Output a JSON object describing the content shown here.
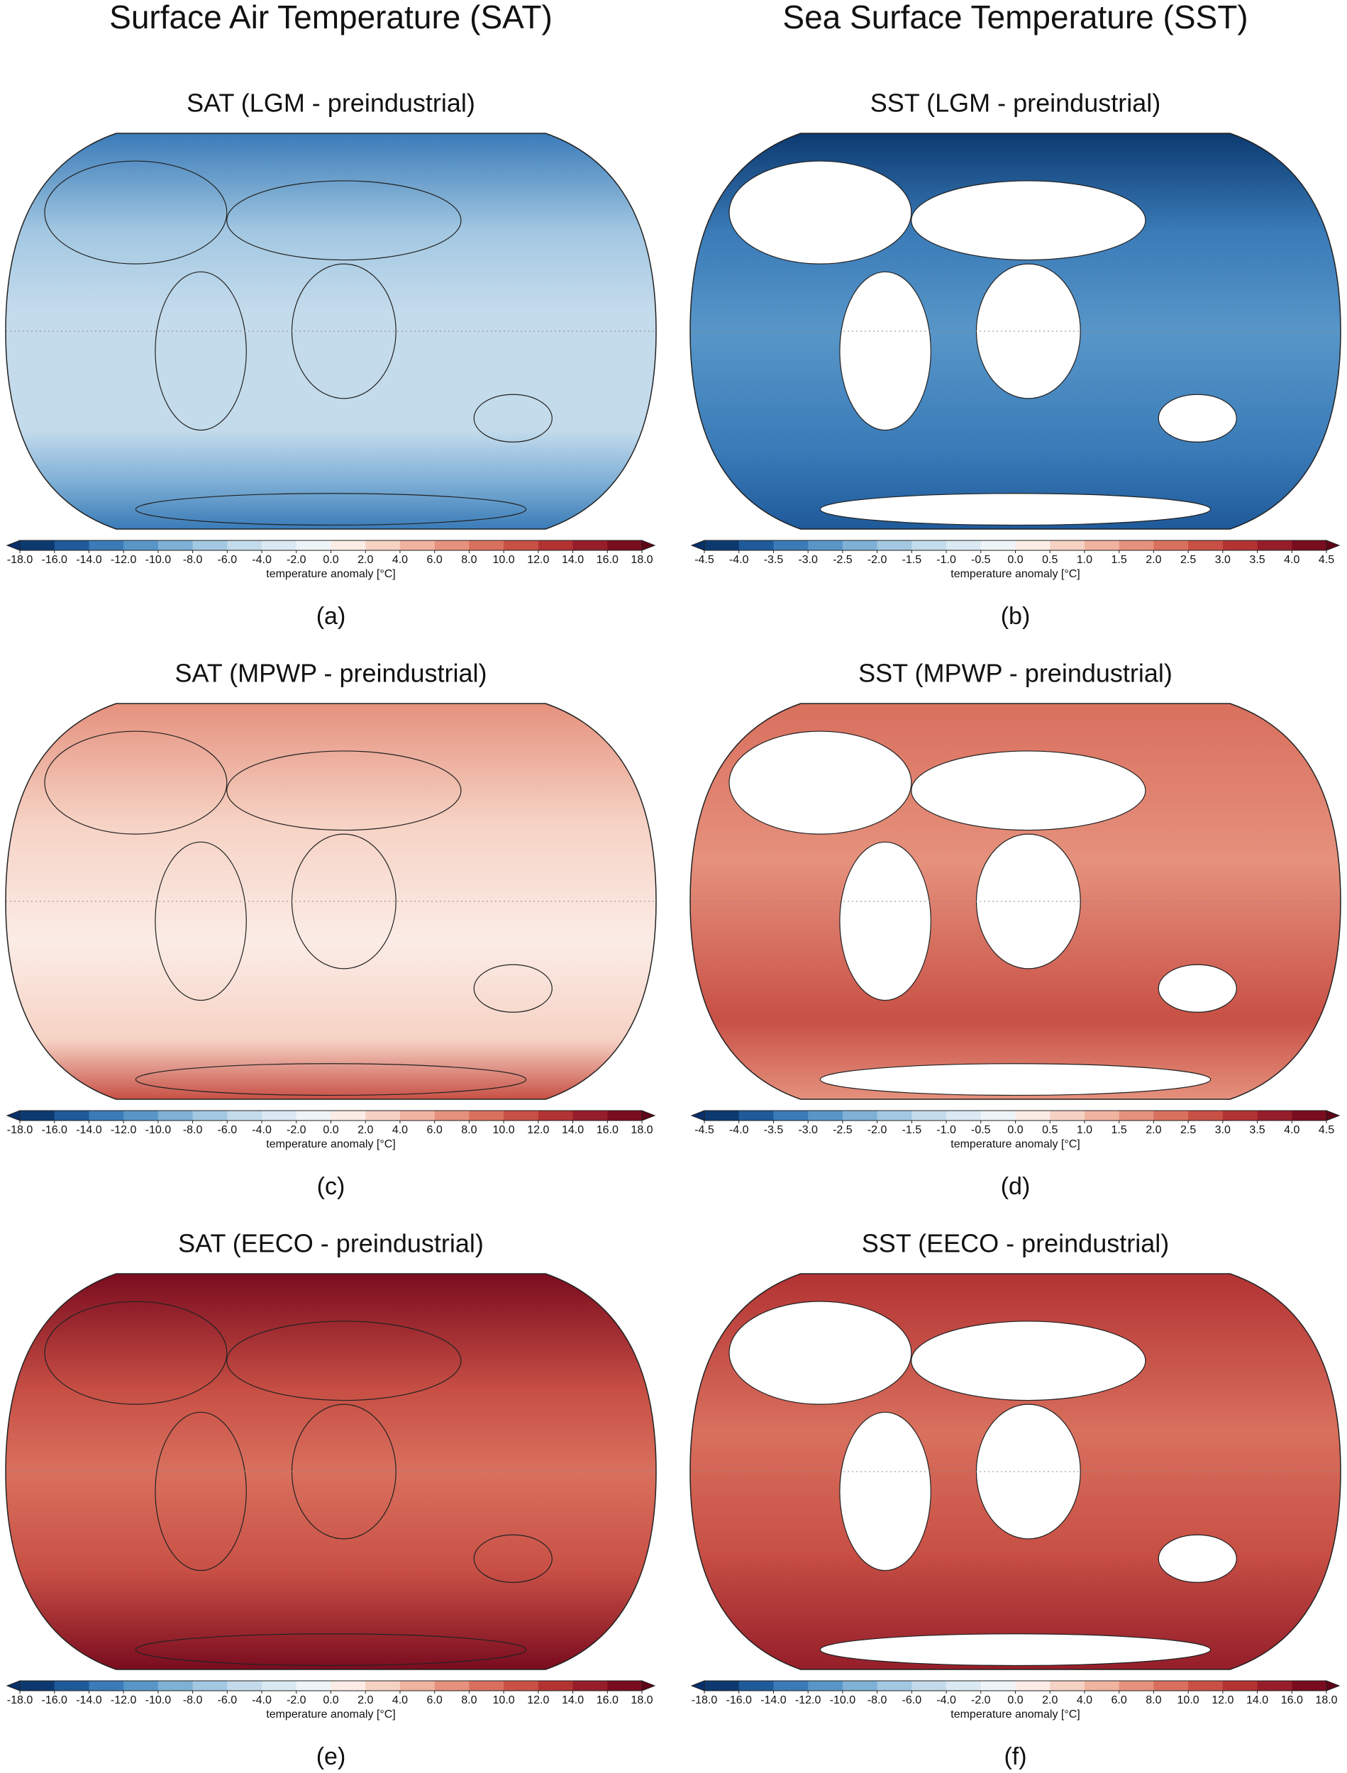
{
  "columns": [
    "Surface Air Temperature (SAT)",
    "Sea Surface Temperature (SST)"
  ],
  "panels": [
    {
      "title": "SAT (LGM - preindustrial)",
      "caption": "(a)",
      "colorbar": {
        "label": "temperature anomaly [°C]",
        "ticks": [
          {
            "value": -18,
            "label": "-18.0"
          },
          {
            "value": -16,
            "label": "-16.0"
          },
          {
            "value": -14,
            "label": "-14.0"
          },
          {
            "value": -12,
            "label": "-12.0"
          },
          {
            "value": -10,
            "label": "-10.0"
          },
          {
            "value": -8,
            "label": "-8.0"
          },
          {
            "value": -6,
            "label": "-6.0"
          },
          {
            "value": -4,
            "label": "-4.0"
          },
          {
            "value": -2,
            "label": "-2.0"
          },
          {
            "value": 0,
            "label": "0.0"
          },
          {
            "value": 2,
            "label": "2.0"
          },
          {
            "value": 4,
            "label": "4.0"
          },
          {
            "value": 6,
            "label": "6.0"
          },
          {
            "value": 8,
            "label": "8.0"
          },
          {
            "value": 10,
            "label": "10.0"
          },
          {
            "value": 12,
            "label": "12.0"
          },
          {
            "value": 14,
            "label": "14.0"
          },
          {
            "value": 16,
            "label": "16.0"
          },
          {
            "value": 18,
            "label": "18.0"
          }
        ],
        "colors": [
          "#08306b",
          "#0c3a70",
          "#1f5a9a",
          "#3a7bb8",
          "#5896c8",
          "#7fb0d6",
          "#a3c8e2",
          "#c4dbec",
          "#dbe9f3",
          "#eef4f8",
          "#fbece6",
          "#f6d2c4",
          "#f0b3a0",
          "#e5917d",
          "#d9705e",
          "#c85045",
          "#b33333",
          "#951e2a",
          "#7a0c1f",
          "#5f0417"
        ]
      }
    },
    {
      "title": "SST (LGM - preindustrial)",
      "caption": "(b)",
      "colorbar": {
        "label": "temperature anomaly [°C]",
        "ticks": [
          {
            "value": -4.5,
            "label": "-4.5"
          },
          {
            "value": -4,
            "label": "-4.0"
          },
          {
            "value": -3.5,
            "label": "-3.5"
          },
          {
            "value": -3,
            "label": "-3.0"
          },
          {
            "value": -2.5,
            "label": "-2.5"
          },
          {
            "value": -2,
            "label": "-2.0"
          },
          {
            "value": -1.5,
            "label": "-1.5"
          },
          {
            "value": -1,
            "label": "-1.0"
          },
          {
            "value": -0.5,
            "label": "-0.5"
          },
          {
            "value": 0,
            "label": "0.0"
          },
          {
            "value": 0.5,
            "label": "0.5"
          },
          {
            "value": 1,
            "label": "1.0"
          },
          {
            "value": 1.5,
            "label": "1.5"
          },
          {
            "value": 2,
            "label": "2.0"
          },
          {
            "value": 2.5,
            "label": "2.5"
          },
          {
            "value": 3,
            "label": "3.0"
          },
          {
            "value": 3.5,
            "label": "3.5"
          },
          {
            "value": 4,
            "label": "4.0"
          },
          {
            "value": 4.5,
            "label": "4.5"
          }
        ],
        "colors": [
          "#08306b",
          "#0c3a70",
          "#1f5a9a",
          "#3a7bb8",
          "#5896c8",
          "#7fb0d6",
          "#a3c8e2",
          "#c4dbec",
          "#dbe9f3",
          "#eef4f8",
          "#fbece6",
          "#f6d2c4",
          "#f0b3a0",
          "#e5917d",
          "#d9705e",
          "#c85045",
          "#b33333",
          "#951e2a",
          "#7a0c1f",
          "#5f0417"
        ]
      }
    },
    {
      "title": "SAT (MPWP - preindustrial)",
      "caption": "(c)",
      "colorbar": {
        "label": "temperature anomaly [°C]",
        "ticks": [
          {
            "value": -18,
            "label": "-18.0"
          },
          {
            "value": -16,
            "label": "-16.0"
          },
          {
            "value": -14,
            "label": "-14.0"
          },
          {
            "value": -12,
            "label": "-12.0"
          },
          {
            "value": -10,
            "label": "-10.0"
          },
          {
            "value": -8,
            "label": "-8.0"
          },
          {
            "value": -6,
            "label": "-6.0"
          },
          {
            "value": -4,
            "label": "-4.0"
          },
          {
            "value": -2,
            "label": "-2.0"
          },
          {
            "value": 0,
            "label": "0.0"
          },
          {
            "value": 2,
            "label": "2.0"
          },
          {
            "value": 4,
            "label": "4.0"
          },
          {
            "value": 6,
            "label": "6.0"
          },
          {
            "value": 8,
            "label": "8.0"
          },
          {
            "value": 10,
            "label": "10.0"
          },
          {
            "value": 12,
            "label": "12.0"
          },
          {
            "value": 14,
            "label": "14.0"
          },
          {
            "value": 16,
            "label": "16.0"
          },
          {
            "value": 18,
            "label": "18.0"
          }
        ],
        "colors": [
          "#08306b",
          "#0c3a70",
          "#1f5a9a",
          "#3a7bb8",
          "#5896c8",
          "#7fb0d6",
          "#a3c8e2",
          "#c4dbec",
          "#dbe9f3",
          "#eef4f8",
          "#fbece6",
          "#f6d2c4",
          "#f0b3a0",
          "#e5917d",
          "#d9705e",
          "#c85045",
          "#b33333",
          "#951e2a",
          "#7a0c1f",
          "#5f0417"
        ]
      }
    },
    {
      "title": "SST (MPWP - preindustrial)",
      "caption": "(d)",
      "colorbar": {
        "label": "temperature anomaly [°C]",
        "ticks": [
          {
            "value": -4.5,
            "label": "-4.5"
          },
          {
            "value": -4,
            "label": "-4.0"
          },
          {
            "value": -3.5,
            "label": "-3.5"
          },
          {
            "value": -3,
            "label": "-3.0"
          },
          {
            "value": -2.5,
            "label": "-2.5"
          },
          {
            "value": -2,
            "label": "-2.0"
          },
          {
            "value": -1.5,
            "label": "-1.5"
          },
          {
            "value": -1,
            "label": "-1.0"
          },
          {
            "value": -0.5,
            "label": "-0.5"
          },
          {
            "value": 0,
            "label": "0.0"
          },
          {
            "value": 0.5,
            "label": "0.5"
          },
          {
            "value": 1,
            "label": "1.0"
          },
          {
            "value": 1.5,
            "label": "1.5"
          },
          {
            "value": 2,
            "label": "2.0"
          },
          {
            "value": 2.5,
            "label": "2.5"
          },
          {
            "value": 3,
            "label": "3.0"
          },
          {
            "value": 3.5,
            "label": "3.5"
          },
          {
            "value": 4,
            "label": "4.0"
          },
          {
            "value": 4.5,
            "label": "4.5"
          }
        ],
        "colors": [
          "#08306b",
          "#0c3a70",
          "#1f5a9a",
          "#3a7bb8",
          "#5896c8",
          "#7fb0d6",
          "#a3c8e2",
          "#c4dbec",
          "#dbe9f3",
          "#eef4f8",
          "#fbece6",
          "#f6d2c4",
          "#f0b3a0",
          "#e5917d",
          "#d9705e",
          "#c85045",
          "#b33333",
          "#951e2a",
          "#7a0c1f",
          "#5f0417"
        ]
      }
    },
    {
      "title": "SAT (EECO - preindustrial)",
      "caption": "(e)",
      "colorbar": {
        "label": "temperature anomaly [°C]",
        "ticks": [
          {
            "value": -18,
            "label": "-18.0"
          },
          {
            "value": -16,
            "label": "-16.0"
          },
          {
            "value": -14,
            "label": "-14.0"
          },
          {
            "value": -12,
            "label": "-12.0"
          },
          {
            "value": -10,
            "label": "-10.0"
          },
          {
            "value": -8,
            "label": "-8.0"
          },
          {
            "value": -6,
            "label": "-6.0"
          },
          {
            "value": -4,
            "label": "-4.0"
          },
          {
            "value": -2,
            "label": "-2.0"
          },
          {
            "value": 0,
            "label": "0.0"
          },
          {
            "value": 2,
            "label": "2.0"
          },
          {
            "value": 4,
            "label": "4.0"
          },
          {
            "value": 6,
            "label": "6.0"
          },
          {
            "value": 8,
            "label": "8.0"
          },
          {
            "value": 10,
            "label": "10.0"
          },
          {
            "value": 12,
            "label": "12.0"
          },
          {
            "value": 14,
            "label": "14.0"
          },
          {
            "value": 16,
            "label": "16.0"
          },
          {
            "value": 18,
            "label": "18.0"
          }
        ],
        "colors": [
          "#08306b",
          "#0c3a70",
          "#1f5a9a",
          "#3a7bb8",
          "#5896c8",
          "#7fb0d6",
          "#a3c8e2",
          "#c4dbec",
          "#dbe9f3",
          "#eef4f8",
          "#fbece6",
          "#f6d2c4",
          "#f0b3a0",
          "#e5917d",
          "#d9705e",
          "#c85045",
          "#b33333",
          "#951e2a",
          "#7a0c1f",
          "#5f0417"
        ]
      }
    },
    {
      "title": "SST (EECO - preindustrial)",
      "caption": "(f)",
      "colorbar": {
        "label": "temperature anomaly [°C]",
        "ticks": [
          {
            "value": -18,
            "label": "-18.0"
          },
          {
            "value": -16,
            "label": "-16.0"
          },
          {
            "value": -14,
            "label": "-14.0"
          },
          {
            "value": -12,
            "label": "-12.0"
          },
          {
            "value": -10,
            "label": "-10.0"
          },
          {
            "value": -8,
            "label": "-8.0"
          },
          {
            "value": -6,
            "label": "-6.0"
          },
          {
            "value": -4,
            "label": "-4.0"
          },
          {
            "value": -2,
            "label": "-2.0"
          },
          {
            "value": 0,
            "label": "0.0"
          },
          {
            "value": 2,
            "label": "2.0"
          },
          {
            "value": 4,
            "label": "4.0"
          },
          {
            "value": 6,
            "label": "6.0"
          },
          {
            "value": 8,
            "label": "8.0"
          },
          {
            "value": 10,
            "label": "10.0"
          },
          {
            "value": 12,
            "label": "12.0"
          },
          {
            "value": 14,
            "label": "14.0"
          },
          {
            "value": 16,
            "label": "16.0"
          },
          {
            "value": 18,
            "label": "18.0"
          }
        ],
        "colors": [
          "#08306b",
          "#0c3a70",
          "#1f5a9a",
          "#3a7bb8",
          "#5896c8",
          "#7fb0d6",
          "#a3c8e2",
          "#c4dbec",
          "#dbe9f3",
          "#eef4f8",
          "#fbece6",
          "#f6d2c4",
          "#f0b3a0",
          "#e5917d",
          "#d9705e",
          "#c85045",
          "#b33333",
          "#951e2a",
          "#7a0c1f",
          "#5f0417"
        ]
      }
    }
  ]
}
